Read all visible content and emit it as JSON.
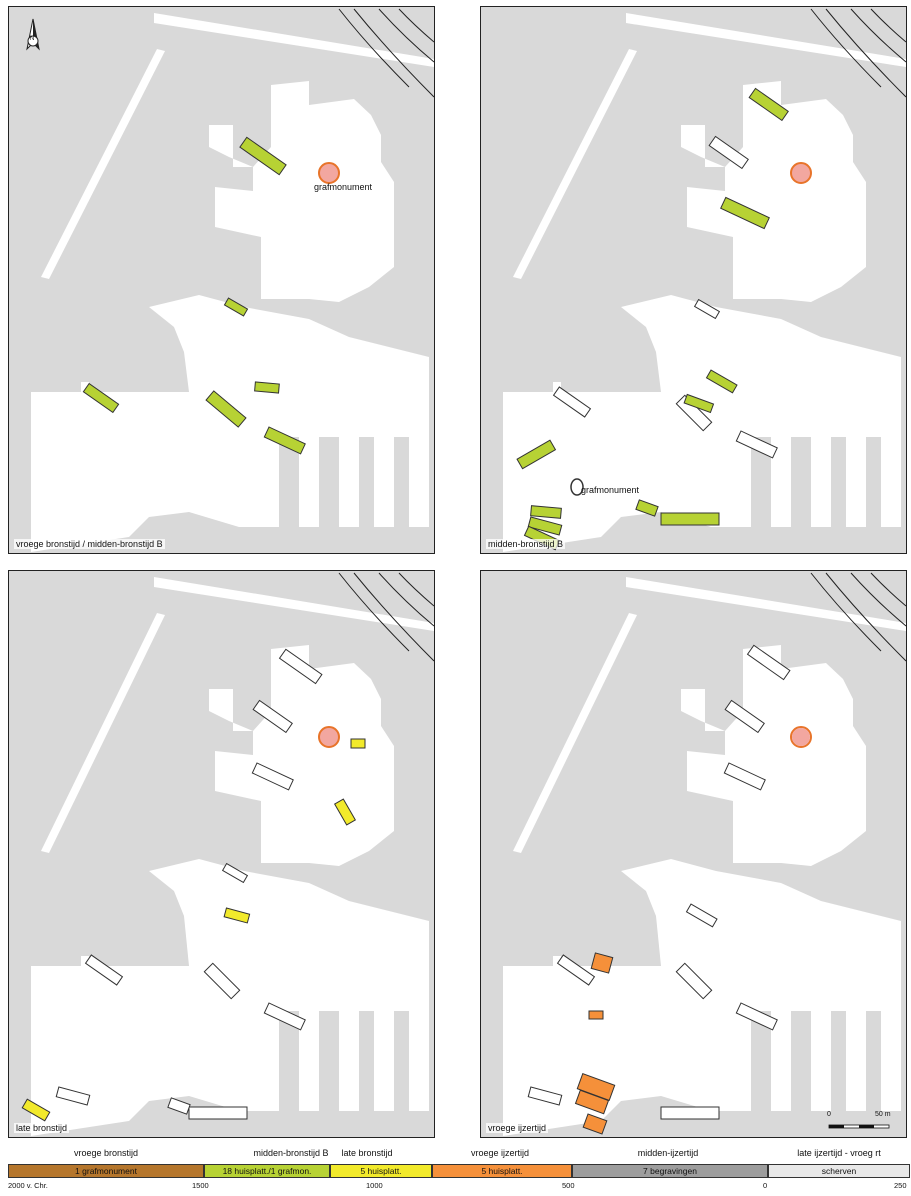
{
  "panels": [
    {
      "label": "vroege bronstijd / midden-bronstijd B",
      "annotation": "grafmonument",
      "north": "N"
    },
    {
      "label": "midden-bronstijd B",
      "annotation": "grafmonument"
    },
    {
      "label": "late bronstijd"
    },
    {
      "label": "vroege ijzertijd",
      "scale_start": "0",
      "scale_end": "50 m"
    }
  ],
  "timeline": {
    "phases": [
      {
        "name": "vroege bronstijd",
        "bar": "1 grafmonument",
        "color": "#b5762c"
      },
      {
        "name": "midden-bronstijd B",
        "bar": "18 huisplatt./1 grafmon.",
        "color": "#b7d234"
      },
      {
        "name": "late bronstijd",
        "bar": "5 huisplatt.",
        "color": "#f2ea2b"
      },
      {
        "name": "vroege ijzertijd",
        "bar": "5 huisplatt.",
        "color": "#f5903a"
      },
      {
        "name": "midden-ijzertijd",
        "bar": "7 begravingen",
        "color": "#9d9d9d"
      },
      {
        "name": "late ijzertijd - vroeg rt",
        "bar": "scherven",
        "color": "#e8e8e8"
      }
    ],
    "ticks": [
      "2000 v. Chr.",
      "1500",
      "1000",
      "500",
      "0",
      "250"
    ]
  },
  "colors": {
    "background": "#d9d9d9",
    "excavation": "#ffffff",
    "monument_fill": "#f2a7a0",
    "monument_ring": "#e8742a"
  }
}
